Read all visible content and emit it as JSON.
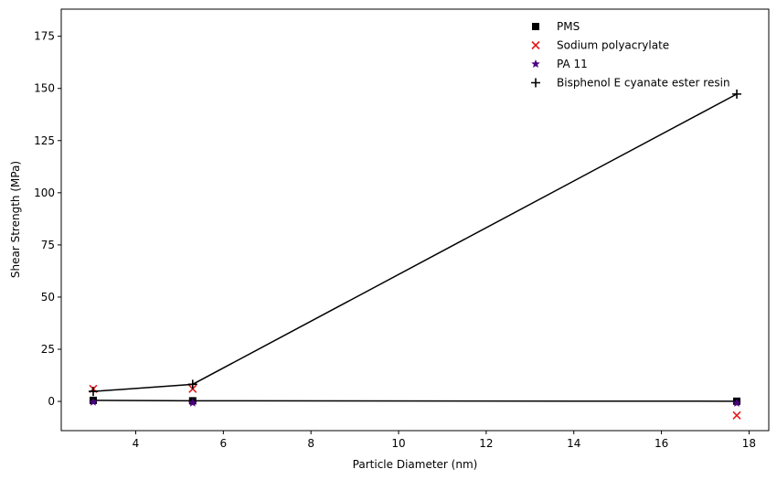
{
  "chart_data": {
    "type": "scatter",
    "title": "",
    "xlabel": "Particle Diameter (nm)",
    "ylabel": "Shear Strength (MPa)",
    "xlim": [
      2.3,
      18.45
    ],
    "ylim": [
      -14,
      188
    ],
    "xticks": [
      4,
      6,
      8,
      10,
      12,
      14,
      16,
      18
    ],
    "yticks": [
      0,
      25,
      50,
      75,
      100,
      125,
      150,
      175
    ],
    "grid": false,
    "legend_position": "top-right",
    "series": [
      {
        "name": "PMS",
        "marker": "square",
        "color": "#000000",
        "line": true,
        "x": [
          3.03,
          5.3,
          17.72
        ],
        "y": [
          0.5,
          0.3,
          0.1
        ]
      },
      {
        "name": "Sodium polyacrylate",
        "marker": "x",
        "color": "#e31a1c",
        "line": false,
        "x": [
          3.03,
          5.3,
          17.72
        ],
        "y": [
          6.0,
          6.0,
          -6.7
        ]
      },
      {
        "name": "PA 11",
        "marker": "star",
        "color": "#4b0082",
        "line": false,
        "x": [
          3.03,
          5.3,
          17.72
        ],
        "y": [
          -0.3,
          -0.7,
          -0.8
        ]
      },
      {
        "name": "Bisphenol E cyanate ester resin",
        "marker": "plus",
        "color": "#000000",
        "line": true,
        "x": [
          3.03,
          5.3,
          17.72
        ],
        "y": [
          4.8,
          8.2,
          147.3
        ]
      }
    ]
  }
}
